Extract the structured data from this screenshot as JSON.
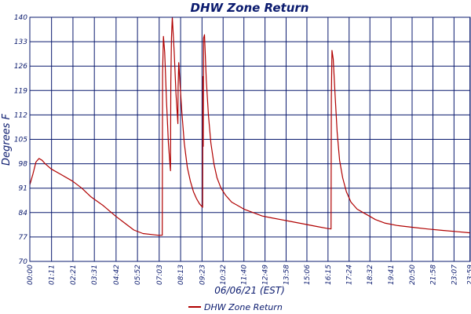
{
  "chart_data": {
    "type": "line",
    "title": "DHW Zone Return",
    "xlabel": "06/06/21 (EST)",
    "ylabel": "Degrees F",
    "ylim": [
      70,
      140
    ],
    "yticks": [
      70,
      77,
      84,
      91,
      98,
      105,
      112,
      119,
      126,
      133,
      140
    ],
    "xlim": [
      0,
      1440
    ],
    "x_unit": "minutes since 00:00",
    "xticks": [
      {
        "x": 0,
        "label": "00:00"
      },
      {
        "x": 71,
        "label": "01:11"
      },
      {
        "x": 141,
        "label": "02:21"
      },
      {
        "x": 211,
        "label": "03:31"
      },
      {
        "x": 282,
        "label": "04:42"
      },
      {
        "x": 352,
        "label": "05:52"
      },
      {
        "x": 423,
        "label": "07:03"
      },
      {
        "x": 493,
        "label": "08:13"
      },
      {
        "x": 563,
        "label": "09:23"
      },
      {
        "x": 632,
        "label": "10:32"
      },
      {
        "x": 700,
        "label": "11:40"
      },
      {
        "x": 769,
        "label": "12:49"
      },
      {
        "x": 838,
        "label": "13:58"
      },
      {
        "x": 906,
        "label": "15:06"
      },
      {
        "x": 975,
        "label": "16:15"
      },
      {
        "x": 1044,
        "label": "17:24"
      },
      {
        "x": 1112,
        "label": "18:32"
      },
      {
        "x": 1181,
        "label": "19:41"
      },
      {
        "x": 1250,
        "label": "20:50"
      },
      {
        "x": 1318,
        "label": "21:58"
      },
      {
        "x": 1387,
        "label": "23:07"
      },
      {
        "x": 1439,
        "label": "23:59"
      }
    ],
    "grid": true,
    "legend_position": "bottom-center",
    "series": [
      {
        "name": "DHW Zone Return",
        "color": "#b00000",
        "points": [
          [
            0,
            92
          ],
          [
            10,
            95
          ],
          [
            20,
            98.5
          ],
          [
            30,
            99.5
          ],
          [
            40,
            99
          ],
          [
            50,
            98
          ],
          [
            70,
            96.5
          ],
          [
            100,
            95
          ],
          [
            140,
            93
          ],
          [
            170,
            91
          ],
          [
            200,
            88.5
          ],
          [
            240,
            86
          ],
          [
            280,
            83
          ],
          [
            310,
            81
          ],
          [
            340,
            79
          ],
          [
            370,
            78
          ],
          [
            400,
            77.7
          ],
          [
            420,
            77.5
          ],
          [
            433,
            77.5
          ],
          [
            434,
            124
          ],
          [
            437,
            134.5
          ],
          [
            441,
            130
          ],
          [
            447,
            116
          ],
          [
            453,
            104
          ],
          [
            459,
            97
          ],
          [
            460,
            96
          ],
          [
            461,
            121
          ],
          [
            463,
            134
          ],
          [
            466,
            140
          ],
          [
            472,
            130
          ],
          [
            478,
            118
          ],
          [
            484,
            109.5
          ],
          [
            485,
            120
          ],
          [
            487,
            127
          ],
          [
            491,
            121
          ],
          [
            497,
            113
          ],
          [
            505,
            104
          ],
          [
            515,
            97
          ],
          [
            525,
            93
          ],
          [
            535,
            90
          ],
          [
            545,
            88
          ],
          [
            555,
            86.5
          ],
          [
            565,
            85.5
          ],
          [
            566,
            123
          ],
          [
            567,
            103
          ],
          [
            568,
            134
          ],
          [
            571,
            135
          ],
          [
            577,
            122
          ],
          [
            584,
            112
          ],
          [
            592,
            104
          ],
          [
            602,
            98
          ],
          [
            612,
            94
          ],
          [
            625,
            91
          ],
          [
            640,
            89
          ],
          [
            660,
            87
          ],
          [
            680,
            86
          ],
          [
            700,
            85
          ],
          [
            730,
            84
          ],
          [
            760,
            83
          ],
          [
            790,
            82.5
          ],
          [
            820,
            82
          ],
          [
            850,
            81.5
          ],
          [
            880,
            81
          ],
          [
            910,
            80.5
          ],
          [
            940,
            80
          ],
          [
            970,
            79.5
          ],
          [
            985,
            79.3
          ],
          [
            986,
            117
          ],
          [
            988,
            130.5
          ],
          [
            992,
            128
          ],
          [
            998,
            118
          ],
          [
            1005,
            107
          ],
          [
            1013,
            99
          ],
          [
            1023,
            94
          ],
          [
            1035,
            90
          ],
          [
            1050,
            87
          ],
          [
            1070,
            85
          ],
          [
            1090,
            84
          ],
          [
            1110,
            83
          ],
          [
            1130,
            82
          ],
          [
            1160,
            81
          ],
          [
            1200,
            80.3
          ],
          [
            1250,
            79.8
          ],
          [
            1300,
            79.3
          ],
          [
            1350,
            78.9
          ],
          [
            1400,
            78.5
          ],
          [
            1440,
            78.2
          ]
        ]
      }
    ]
  }
}
